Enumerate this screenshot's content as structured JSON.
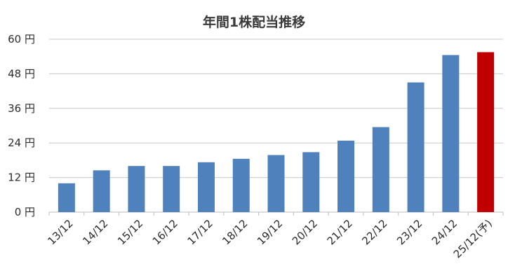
{
  "chart_data": {
    "type": "bar",
    "title": "年間1株配当推移",
    "xlabel": "",
    "ylabel": "",
    "ylim": [
      0,
      60
    ],
    "yticks": [
      0,
      12,
      24,
      36,
      48,
      60
    ],
    "ytick_labels": [
      "0 円",
      "12 円",
      "24 円",
      "36 円",
      "48 円",
      "60 円"
    ],
    "categories": [
      "13/12",
      "14/12",
      "15/12",
      "16/12",
      "17/12",
      "18/12",
      "19/12",
      "20/12",
      "21/12",
      "22/12",
      "23/12",
      "24/12",
      "25/12(予)"
    ],
    "values": [
      10,
      14.5,
      16,
      16,
      17.3,
      18.5,
      19.8,
      20.8,
      24.8,
      29.5,
      45,
      54.5,
      55.5
    ],
    "bar_colors": [
      "#4f81bd",
      "#4f81bd",
      "#4f81bd",
      "#4f81bd",
      "#4f81bd",
      "#4f81bd",
      "#4f81bd",
      "#4f81bd",
      "#4f81bd",
      "#4f81bd",
      "#4f81bd",
      "#4f81bd",
      "#c00000"
    ],
    "grid": true,
    "legend": "none"
  }
}
